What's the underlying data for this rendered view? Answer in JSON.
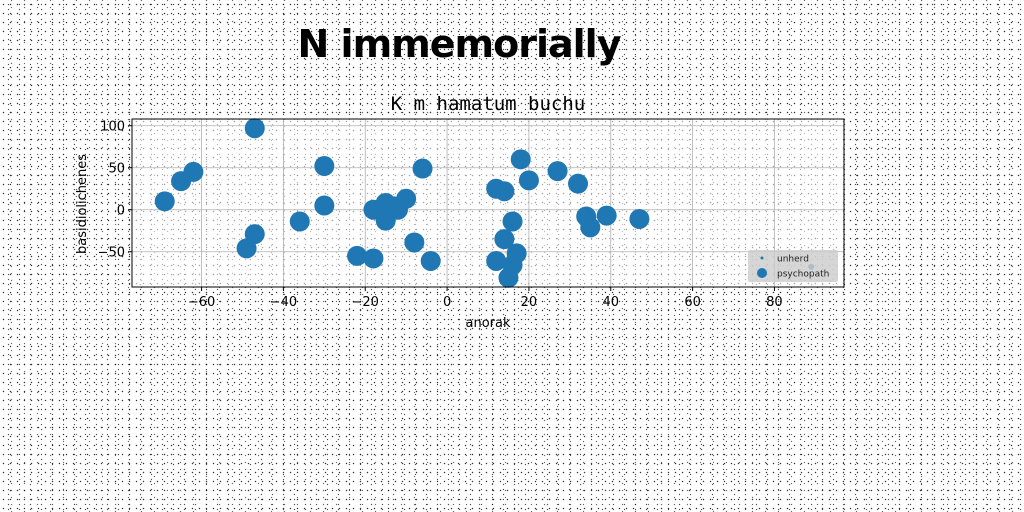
{
  "page": {
    "suptitle": "N immemorially"
  },
  "chart_data": {
    "type": "scatter",
    "title": "K m hamatum buchu",
    "xlabel": "anorak",
    "ylabel": "basidiolichenes",
    "xlim": [
      -77,
      97
    ],
    "ylim": [
      -92,
      108
    ],
    "xticks": [
      -60,
      -40,
      -20,
      0,
      20,
      40,
      60,
      80
    ],
    "xtick_labels": [
      "−60",
      "−40",
      "−20",
      "0",
      "20",
      "40",
      "60",
      "80"
    ],
    "yticks": [
      -50,
      0,
      50,
      100
    ],
    "ytick_labels": [
      "−50",
      "0",
      "50",
      "100"
    ],
    "grid": true,
    "legend_placement": "lower-right",
    "series": [
      {
        "name": "unherd",
        "color": "#1f77b4",
        "marker_size": "small",
        "points": [
          [
            89,
            -68
          ]
        ]
      },
      {
        "name": "psychopath",
        "color": "#1f77b4",
        "marker_size": "large",
        "points": [
          [
            -69,
            10
          ],
          [
            -65,
            34
          ],
          [
            -62,
            45
          ],
          [
            -47,
            97
          ],
          [
            -49,
            -46
          ],
          [
            -47,
            -29
          ],
          [
            -36,
            -14
          ],
          [
            -30,
            52
          ],
          [
            -30,
            5
          ],
          [
            -22,
            -55
          ],
          [
            -18,
            -58
          ],
          [
            -18,
            0
          ],
          [
            -15,
            8
          ],
          [
            -15,
            -13
          ],
          [
            -13,
            4
          ],
          [
            -12,
            0
          ],
          [
            -10,
            13
          ],
          [
            -8,
            -39
          ],
          [
            -6,
            49
          ],
          [
            -4,
            -61
          ],
          [
            12,
            -61
          ],
          [
            12,
            25
          ],
          [
            14,
            22
          ],
          [
            14,
            -35
          ],
          [
            15,
            -81
          ],
          [
            16,
            -14
          ],
          [
            16,
            -66
          ],
          [
            17,
            -52
          ],
          [
            18,
            60
          ],
          [
            20,
            35
          ],
          [
            27,
            46
          ],
          [
            32,
            31
          ],
          [
            34,
            -8
          ],
          [
            35,
            -21
          ],
          [
            39,
            -7
          ],
          [
            47,
            -11
          ]
        ]
      }
    ]
  }
}
